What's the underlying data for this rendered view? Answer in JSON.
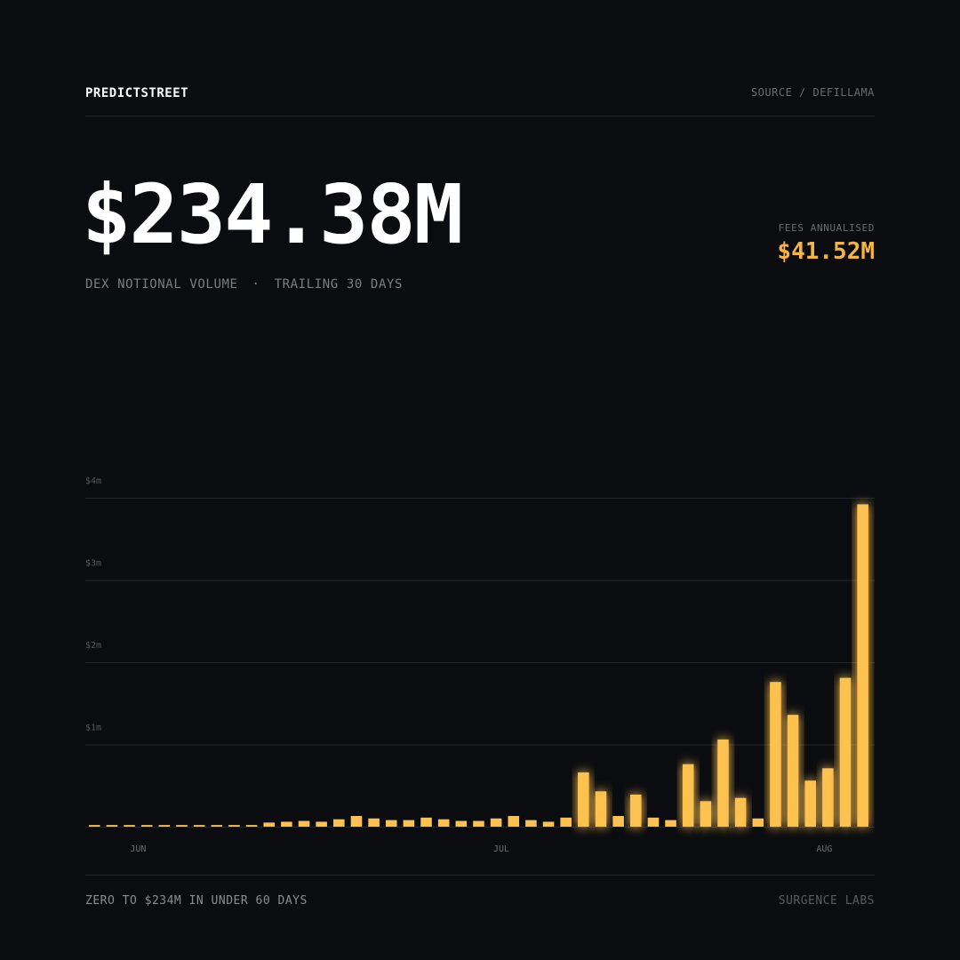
{
  "header": {
    "brand": "PREDICTSTREET",
    "source": "SOURCE / DEFILLAMA"
  },
  "hero": {
    "value": "$234.38M",
    "label": "DEX NOTIONAL VOLUME",
    "separator": "·",
    "period": "TRAILING 30 DAYS"
  },
  "fees": {
    "label": "FEES ANNUALISED",
    "value": "$41.52M"
  },
  "footer": {
    "left": "ZERO TO $234M IN UNDER 60 DAYS",
    "right": "SURGENCE LABS"
  },
  "colors": {
    "background": "#0b0c0f",
    "accent": "#f5b640",
    "bar": "#fdc14f",
    "grid": "#24262b",
    "muted": "#6b6d73"
  },
  "chart_data": {
    "type": "bar",
    "ylim": [
      0,
      4
    ],
    "yunit": "millions USD",
    "yticks": [
      {
        "value": 1,
        "label": "$1m"
      },
      {
        "value": 2,
        "label": "$2m"
      },
      {
        "value": 3,
        "label": "$3m"
      },
      {
        "value": 4,
        "label": "$4m"
      }
    ],
    "xticks": [
      {
        "index": 2.5,
        "label": "JUN"
      },
      {
        "index": 23.3,
        "label": "JUL"
      },
      {
        "index": 41.8,
        "label": "AUG"
      }
    ],
    "values": [
      0.02,
      0.02,
      0.02,
      0.02,
      0.02,
      0.02,
      0.02,
      0.02,
      0.02,
      0.02,
      0.05,
      0.06,
      0.07,
      0.06,
      0.09,
      0.13,
      0.1,
      0.08,
      0.08,
      0.11,
      0.09,
      0.07,
      0.07,
      0.1,
      0.13,
      0.08,
      0.06,
      0.11,
      0.66,
      0.43,
      0.13,
      0.39,
      0.11,
      0.08,
      0.76,
      0.31,
      1.06,
      0.35,
      0.1,
      1.76,
      1.36,
      0.56,
      0.71,
      1.81,
      3.92
    ],
    "grid": true,
    "legend": "none"
  }
}
